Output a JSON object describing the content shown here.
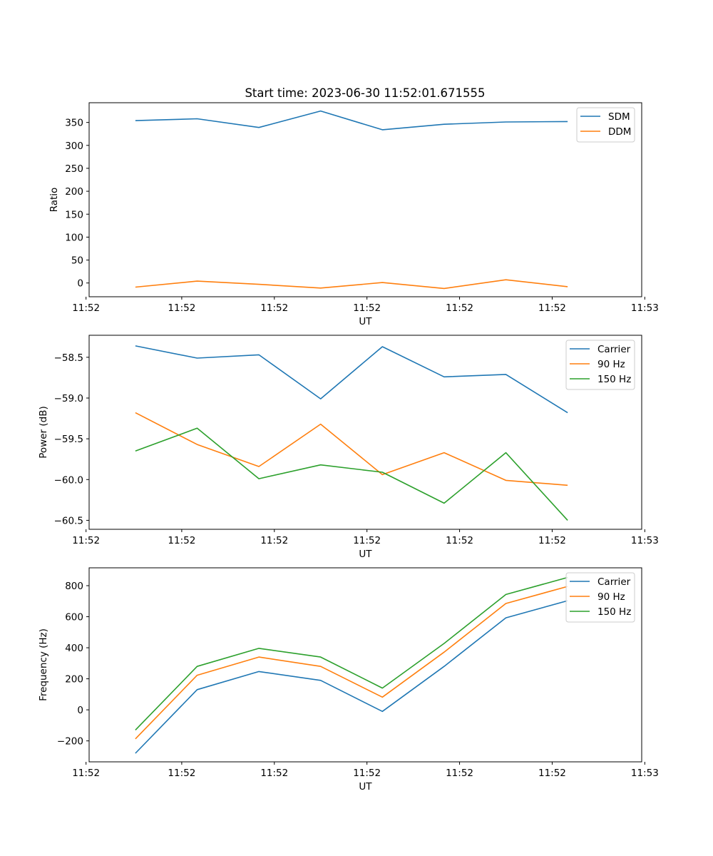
{
  "figure": {
    "title": "Start time: 2023-06-30 11:52:01.671555"
  },
  "chart_data": [
    {
      "type": "line",
      "title": "Start time: 2023-06-30 11:52:01.671555",
      "xlabel": "UT",
      "ylabel": "Ratio",
      "x": [
        1,
        2,
        3,
        4,
        5,
        6,
        7,
        8
      ],
      "xlim": [
        0.25,
        9.2
      ],
      "xticks": [
        0.2,
        1.75,
        3.25,
        4.75,
        6.25,
        7.75,
        9.25
      ],
      "xtick_labels": [
        "11:52",
        "11:52",
        "11:52",
        "11:52",
        "11:52",
        "11:52",
        "11:53"
      ],
      "ylim": [
        -30,
        393
      ],
      "yticks": [
        0,
        50,
        100,
        150,
        200,
        250,
        300,
        350
      ],
      "ytick_labels": [
        "0",
        "50",
        "100",
        "150",
        "200",
        "250",
        "300",
        "350"
      ],
      "legend": "top-right",
      "grid": false,
      "series": [
        {
          "name": "SDM",
          "color": "#1f77b4",
          "values": [
            354,
            358,
            339,
            375,
            334,
            346,
            351,
            352
          ]
        },
        {
          "name": "DDM",
          "color": "#ff7f0e",
          "values": [
            -9,
            4,
            -3,
            -11,
            1,
            -12,
            7,
            -8
          ]
        }
      ]
    },
    {
      "type": "line",
      "xlabel": "UT",
      "ylabel": "Power (dB)",
      "x": [
        1,
        2,
        3,
        4,
        5,
        6,
        7,
        8
      ],
      "xlim": [
        0.25,
        9.2
      ],
      "xticks": [
        0.2,
        1.75,
        3.25,
        4.75,
        6.25,
        7.75,
        9.25
      ],
      "xtick_labels": [
        "11:52",
        "11:52",
        "11:52",
        "11:52",
        "11:52",
        "11:52",
        "11:53"
      ],
      "ylim": [
        -60.61,
        -58.23
      ],
      "yticks": [
        -60.5,
        -60.0,
        -59.5,
        -59.0,
        -58.5
      ],
      "ytick_labels": [
        "−60.5",
        "−60.0",
        "−59.5",
        "−59.0",
        "−58.5"
      ],
      "legend": "top-right",
      "grid": false,
      "series": [
        {
          "name": "Carrier",
          "color": "#1f77b4",
          "values": [
            -58.36,
            -58.51,
            -58.47,
            -59.01,
            -58.37,
            -58.74,
            -58.71,
            -59.18
          ]
        },
        {
          "name": "90 Hz",
          "color": "#ff7f0e",
          "values": [
            -59.18,
            -59.57,
            -59.84,
            -59.32,
            -59.94,
            -59.67,
            -60.01,
            -60.07
          ]
        },
        {
          "name": "150 Hz",
          "color": "#2ca02c",
          "values": [
            -59.65,
            -59.37,
            -59.99,
            -59.82,
            -59.91,
            -60.29,
            -59.67,
            -60.5
          ]
        }
      ]
    },
    {
      "type": "line",
      "xlabel": "UT",
      "ylabel": "Frequency (Hz)",
      "x": [
        1,
        2,
        3,
        4,
        5,
        6,
        7,
        8
      ],
      "xlim": [
        0.25,
        9.2
      ],
      "xticks": [
        0.2,
        1.75,
        3.25,
        4.75,
        6.25,
        7.75,
        9.25
      ],
      "xtick_labels": [
        "11:52",
        "11:52",
        "11:52",
        "11:52",
        "11:52",
        "11:52",
        "11:53"
      ],
      "ylim": [
        -335,
        915
      ],
      "yticks": [
        -200,
        0,
        200,
        400,
        600,
        800
      ],
      "ytick_labels": [
        "−200",
        "0",
        "200",
        "400",
        "600",
        "800"
      ],
      "legend": "top-right",
      "grid": false,
      "series": [
        {
          "name": "Carrier",
          "color": "#1f77b4",
          "values": [
            -280,
            130,
            247,
            190,
            -10,
            280,
            593,
            703
          ]
        },
        {
          "name": "90 Hz",
          "color": "#ff7f0e",
          "values": [
            -187,
            223,
            340,
            280,
            82,
            372,
            685,
            795
          ]
        },
        {
          "name": "150 Hz",
          "color": "#2ca02c",
          "values": [
            -130,
            280,
            396,
            340,
            140,
            428,
            743,
            853
          ]
        }
      ]
    }
  ]
}
